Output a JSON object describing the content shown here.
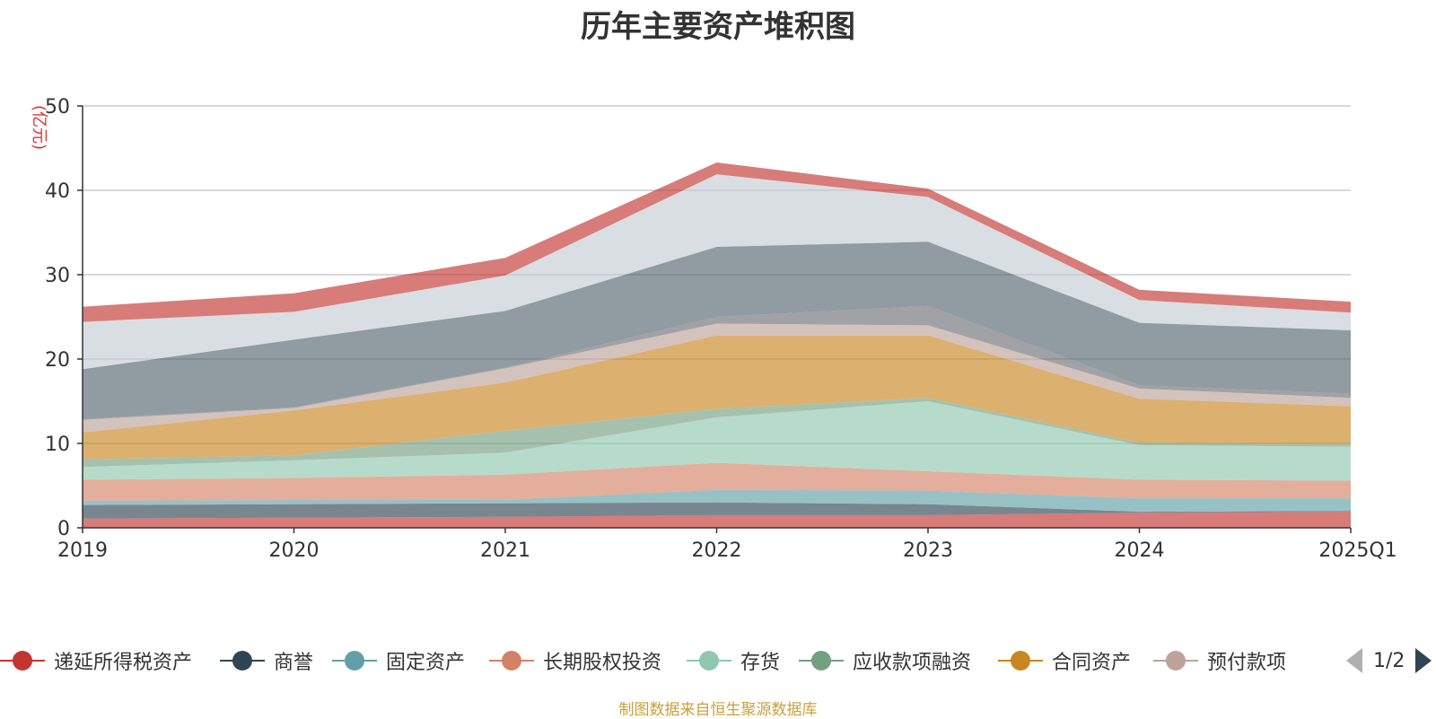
{
  "chart_data": {
    "type": "area",
    "stacked": true,
    "title": "历年主要资产堆积图",
    "ylabel": "(亿元)",
    "ylim": [
      0,
      50
    ],
    "yticks": [
      0,
      10,
      20,
      30,
      40,
      50
    ],
    "categories": [
      "2019",
      "2020",
      "2021",
      "2022",
      "2023",
      "2024",
      "2025Q1"
    ],
    "grid": true,
    "legend_position": "bottom",
    "legend_page": "1/2",
    "series": [
      {
        "name": "递延所得税资产",
        "color": "#c23531",
        "values": [
          1.1,
          1.2,
          1.3,
          1.5,
          1.5,
          1.8,
          1.9
        ]
      },
      {
        "name": "商誉",
        "color": "#2f4554",
        "values": [
          1.6,
          1.6,
          1.6,
          1.5,
          1.3,
          0.1,
          0.1
        ]
      },
      {
        "name": "固定资产",
        "color": "#61a0a8",
        "values": [
          0.5,
          0.5,
          0.4,
          1.5,
          1.6,
          1.6,
          1.5
        ]
      },
      {
        "name": "长期股权投资",
        "color": "#d48265",
        "values": [
          2.5,
          2.6,
          3.0,
          3.2,
          2.3,
          2.2,
          2.1
        ]
      },
      {
        "name": "存货",
        "color": "#91c7ae",
        "values": [
          1.5,
          2.1,
          2.6,
          5.4,
          8.3,
          4.1,
          4.0
        ]
      },
      {
        "name": "应收款项融资",
        "color": "#749f83",
        "values": [
          0.9,
          0.6,
          2.6,
          1.0,
          0.4,
          0.3,
          0.3
        ]
      },
      {
        "name": "合同资产",
        "color": "#ca8622",
        "values": [
          3.2,
          5.3,
          5.7,
          8.7,
          7.4,
          5.2,
          4.5
        ]
      },
      {
        "name": "预付款项",
        "color": "#bda29a",
        "values": [
          1.5,
          0.3,
          1.7,
          1.4,
          1.2,
          1.2,
          1.0
        ]
      },
      {
        "name": "",
        "color": "#6e7074",
        "values": [
          0.1,
          0.1,
          0.1,
          0.8,
          2.3,
          0.4,
          0.5
        ]
      },
      {
        "name": "",
        "color": "#546570",
        "values": [
          5.9,
          8.0,
          6.7,
          8.3,
          7.6,
          7.4,
          7.5
        ]
      },
      {
        "name": "",
        "color": "#c4ccd3",
        "values": [
          5.6,
          3.3,
          4.2,
          8.6,
          5.3,
          2.7,
          2.1
        ]
      },
      {
        "name": "",
        "color": "#c23531",
        "values": [
          1.8,
          2.2,
          2.1,
          1.4,
          1.0,
          1.2,
          1.3
        ]
      }
    ]
  },
  "source_note": "制图数据来自恒生聚源数据库"
}
